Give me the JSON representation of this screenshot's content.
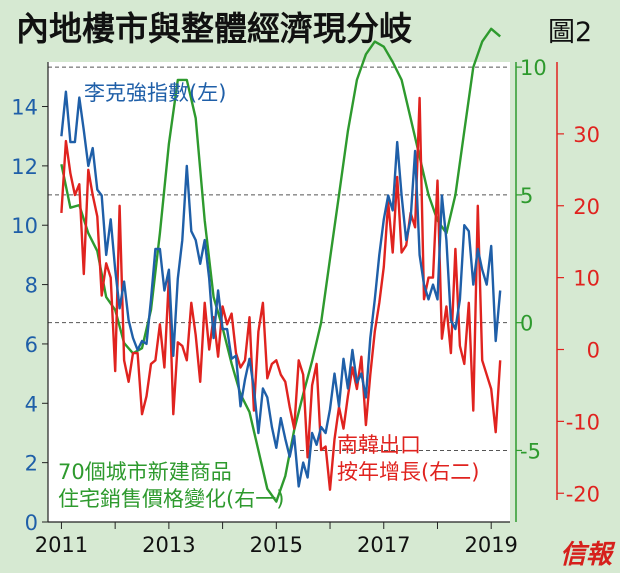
{
  "header": {
    "title": "內地樓市與整體經濟現分岐",
    "figure_no": "圖2"
  },
  "footer": {
    "brand": "信報"
  },
  "colors": {
    "background": "#d6e9d2",
    "plot_bg": "#ffffff",
    "blue": "#1f5fa8",
    "green": "#2e9a2e",
    "red": "#e0231f",
    "grid": "#555555"
  },
  "chart_data": {
    "type": "line",
    "title": "內地樓市與整體經濟現分岐",
    "x_axis": {
      "range": [
        2010.75,
        2019.35
      ],
      "ticks": [
        2011,
        2013,
        2015,
        2017,
        2019
      ]
    },
    "axes": {
      "left": {
        "range": [
          0,
          15.5
        ],
        "ticks": [
          0,
          2,
          4,
          6,
          8,
          10,
          12,
          14
        ],
        "color": "#1f5fa8"
      },
      "right1": {
        "range": [
          -7.8,
          10.2
        ],
        "ticks": [
          -5,
          0,
          5,
          10
        ],
        "color": "#2e9a2e"
      },
      "right2": {
        "range": [
          -24,
          40
        ],
        "ticks": [
          -20,
          -10,
          0,
          10,
          20,
          30
        ],
        "color": "#e0231f"
      }
    },
    "grid": "dashed horizontal at right-axis 0, 5 and 10",
    "series": [
      {
        "name": "李克強指數(左)",
        "label_lines": [
          "李克強指數(左)"
        ],
        "axis": "left",
        "color": "#1f5fa8",
        "x": [
          2011.0,
          2011.083,
          2011.167,
          2011.25,
          2011.333,
          2011.417,
          2011.5,
          2011.583,
          2011.667,
          2011.75,
          2011.833,
          2011.917,
          2012.0,
          2012.083,
          2012.167,
          2012.25,
          2012.333,
          2012.417,
          2012.5,
          2012.583,
          2012.667,
          2012.75,
          2012.833,
          2012.917,
          2013.0,
          2013.083,
          2013.167,
          2013.25,
          2013.333,
          2013.417,
          2013.5,
          2013.583,
          2013.667,
          2013.75,
          2013.833,
          2013.917,
          2014.0,
          2014.083,
          2014.167,
          2014.25,
          2014.333,
          2014.417,
          2014.5,
          2014.583,
          2014.667,
          2014.75,
          2014.833,
          2014.917,
          2015.0,
          2015.083,
          2015.167,
          2015.25,
          2015.333,
          2015.417,
          2015.5,
          2015.583,
          2015.667,
          2015.75,
          2015.833,
          2015.917,
          2016.0,
          2016.083,
          2016.167,
          2016.25,
          2016.333,
          2016.417,
          2016.5,
          2016.583,
          2016.667,
          2016.75,
          2016.833,
          2016.917,
          2017.0,
          2017.083,
          2017.167,
          2017.25,
          2017.333,
          2017.417,
          2017.5,
          2017.583,
          2017.667,
          2017.75,
          2017.833,
          2017.917,
          2018.0,
          2018.083,
          2018.167,
          2018.25,
          2018.333,
          2018.417,
          2018.5,
          2018.583,
          2018.667,
          2018.75,
          2018.833,
          2018.917,
          2019.0,
          2019.083,
          2019.167
        ],
        "values": [
          13.0,
          14.5,
          12.8,
          12.8,
          14.3,
          13.2,
          12.0,
          12.6,
          11.2,
          11.0,
          9.0,
          10.2,
          8.5,
          7.2,
          8.1,
          6.8,
          6.2,
          5.8,
          6.1,
          6.0,
          7.5,
          9.2,
          9.2,
          7.8,
          8.5,
          5.6,
          8.2,
          9.5,
          12.0,
          9.8,
          9.5,
          8.7,
          9.5,
          8.2,
          6.2,
          7.8,
          6.5,
          6.5,
          5.5,
          5.6,
          3.9,
          4.8,
          5.5,
          4.5,
          3.0,
          4.5,
          4.2,
          3.2,
          2.5,
          3.5,
          2.8,
          2.2,
          2.9,
          1.2,
          2.0,
          1.5,
          3.0,
          2.6,
          3.2,
          3.0,
          3.8,
          5.0,
          3.9,
          5.5,
          4.5,
          5.8,
          4.7,
          5.0,
          4.2,
          6.2,
          7.5,
          9.0,
          10.2,
          11.0,
          10.5,
          12.8,
          11.0,
          9.5,
          10.2,
          12.5,
          9.0,
          8.0,
          7.5,
          8.0,
          7.5,
          11.0,
          9.5,
          6.8,
          6.5,
          7.5,
          10.0,
          9.8,
          8.0,
          9.2,
          8.5,
          8.0,
          9.3,
          6.1,
          7.8
        ]
      },
      {
        "name": "70個城市新建商品住宅銷售價格變化(右一)",
        "label_lines": [
          "70個城市新建商品",
          "住宅銷售價格變化(右一)"
        ],
        "axis": "right1",
        "color": "#2e9a2e",
        "x": [
          2011.0,
          2011.167,
          2011.333,
          2011.5,
          2011.667,
          2011.833,
          2012.0,
          2012.167,
          2012.333,
          2012.5,
          2012.667,
          2012.833,
          2013.0,
          2013.167,
          2013.333,
          2013.5,
          2013.667,
          2013.833,
          2014.0,
          2014.167,
          2014.333,
          2014.5,
          2014.667,
          2014.833,
          2015.0,
          2015.167,
          2015.333,
          2015.5,
          2015.667,
          2015.833,
          2016.0,
          2016.167,
          2016.333,
          2016.5,
          2016.667,
          2016.833,
          2017.0,
          2017.167,
          2017.333,
          2017.5,
          2017.667,
          2017.833,
          2018.0,
          2018.167,
          2018.333,
          2018.5,
          2018.667,
          2018.833,
          2019.0,
          2019.167
        ],
        "values": [
          6.2,
          4.5,
          4.6,
          3.5,
          2.8,
          1.0,
          0.5,
          -0.8,
          -1.2,
          -1.0,
          0.5,
          3.5,
          7.0,
          9.5,
          9.5,
          8.0,
          4.0,
          1.0,
          -0.2,
          -1.6,
          -2.8,
          -3.5,
          -5.0,
          -6.5,
          -7.0,
          -6.0,
          -4.2,
          -2.8,
          -1.5,
          0.0,
          2.5,
          5.0,
          7.5,
          9.5,
          10.5,
          11.0,
          10.8,
          10.2,
          9.5,
          8.0,
          6.5,
          5.0,
          4.0,
          3.5,
          5.0,
          7.5,
          10.0,
          11.0,
          11.5,
          11.2
        ]
      },
      {
        "name": "南韓出口按年增長(右二)",
        "label_lines": [
          "南韓出口",
          "按年增長(右二)"
        ],
        "axis": "right2",
        "color": "#e0231f",
        "x": [
          2011.0,
          2011.083,
          2011.167,
          2011.25,
          2011.333,
          2011.417,
          2011.5,
          2011.583,
          2011.667,
          2011.75,
          2011.833,
          2011.917,
          2012.0,
          2012.083,
          2012.167,
          2012.25,
          2012.333,
          2012.417,
          2012.5,
          2012.583,
          2012.667,
          2012.75,
          2012.833,
          2012.917,
          2013.0,
          2013.083,
          2013.167,
          2013.25,
          2013.333,
          2013.417,
          2013.5,
          2013.583,
          2013.667,
          2013.75,
          2013.833,
          2013.917,
          2014.0,
          2014.083,
          2014.167,
          2014.25,
          2014.333,
          2014.417,
          2014.5,
          2014.583,
          2014.667,
          2014.75,
          2014.833,
          2014.917,
          2015.0,
          2015.083,
          2015.167,
          2015.25,
          2015.333,
          2015.417,
          2015.5,
          2015.583,
          2015.667,
          2015.75,
          2015.833,
          2015.917,
          2016.0,
          2016.083,
          2016.167,
          2016.25,
          2016.333,
          2016.417,
          2016.5,
          2016.583,
          2016.667,
          2016.75,
          2016.833,
          2016.917,
          2017.0,
          2017.083,
          2017.167,
          2017.25,
          2017.333,
          2017.417,
          2017.5,
          2017.583,
          2017.667,
          2017.75,
          2017.833,
          2017.917,
          2018.0,
          2018.083,
          2018.167,
          2018.25,
          2018.333,
          2018.417,
          2018.5,
          2018.583,
          2018.667,
          2018.75,
          2018.833,
          2018.917,
          2019.0,
          2019.083,
          2019.167
        ],
        "values": [
          19.0,
          29.0,
          24.5,
          21.5,
          23.0,
          10.5,
          25.0,
          21.5,
          18.5,
          7.5,
          12.0,
          10.0,
          -3.0,
          20.0,
          -1.5,
          -4.5,
          -0.5,
          -0.5,
          -9.0,
          -6.5,
          -2.0,
          -1.5,
          3.5,
          -2.5,
          10.0,
          -9.0,
          1.0,
          0.5,
          -1.5,
          6.5,
          2.0,
          -4.5,
          6.5,
          0.0,
          4.5,
          -1.0,
          6.0,
          3.5,
          5.0,
          -0.5,
          -2.5,
          -1.5,
          4.5,
          -8.5,
          2.5,
          6.5,
          -4.0,
          -2.0,
          -1.5,
          -3.5,
          -4.5,
          -8.0,
          -11.0,
          -1.5,
          -3.5,
          -15.0,
          -5.0,
          -2.0,
          -14.0,
          -13.5,
          -19.5,
          -12.5,
          -8.0,
          -11.0,
          -6.5,
          -2.5,
          -5.5,
          -1.0,
          -10.5,
          -3.5,
          2.5,
          6.5,
          11.5,
          20.5,
          13.5,
          24.0,
          13.5,
          14.5,
          19.0,
          17.0,
          35.0,
          7.0,
          10.0,
          10.0,
          23.5,
          1.5,
          6.0,
          -0.5,
          14.0,
          0.5,
          -2.0,
          6.5,
          -8.5,
          20.0,
          -1.5,
          -3.5,
          -5.5,
          -11.5,
          -1.5
        ]
      }
    ]
  }
}
